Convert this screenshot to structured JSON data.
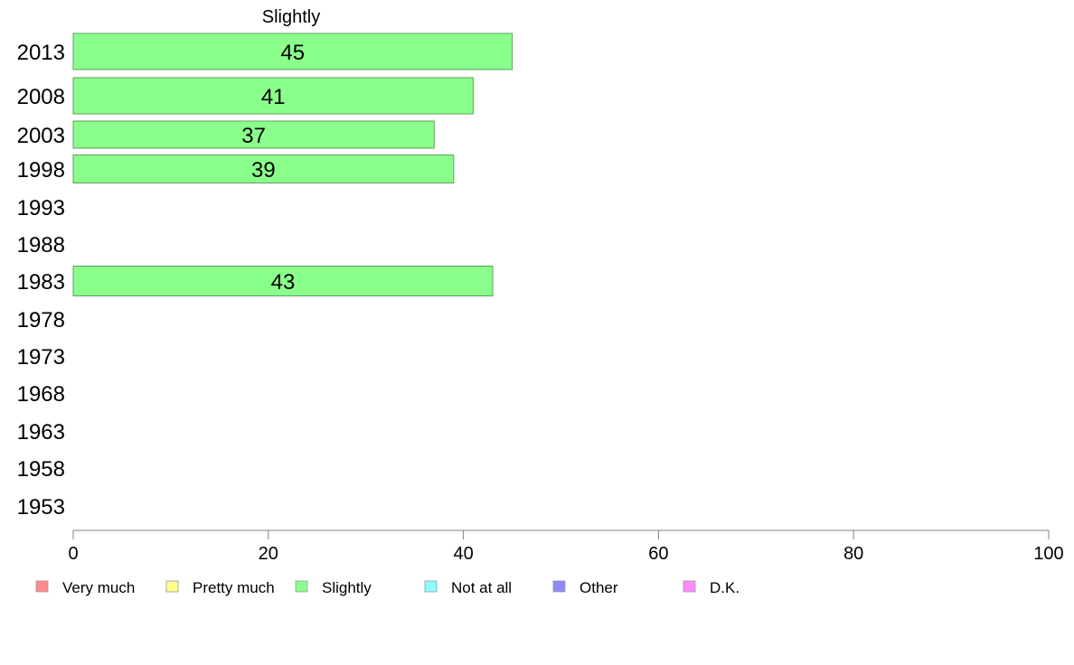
{
  "chart_data": {
    "type": "bar",
    "orientation": "horizontal",
    "title": "Slightly",
    "categories": [
      "2013",
      "2008",
      "2003",
      "1998",
      "1993",
      "1988",
      "1983",
      "1978",
      "1973",
      "1968",
      "1963",
      "1958",
      "1953"
    ],
    "series": [
      {
        "name": "Slightly",
        "values": [
          45,
          41,
          37,
          39,
          null,
          null,
          43,
          null,
          null,
          null,
          null,
          null,
          null
        ]
      }
    ],
    "xlim": [
      0,
      100
    ],
    "xticks": [
      0,
      20,
      40,
      60,
      80,
      100
    ],
    "grid": false,
    "legend_position": "bottom",
    "legend": [
      {
        "label": "Very much",
        "color": "#ff8b8b"
      },
      {
        "label": "Pretty much",
        "color": "#ffff8b"
      },
      {
        "label": "Slightly",
        "color": "#8bff8b"
      },
      {
        "label": "Not at all",
        "color": "#8bffff"
      },
      {
        "label": "Other",
        "color": "#8b8bff"
      },
      {
        "label": "D.K.",
        "color": "#ff8bff"
      }
    ],
    "bar_color": "#8bff8b",
    "bar_edge_color": "#5aa05a"
  }
}
